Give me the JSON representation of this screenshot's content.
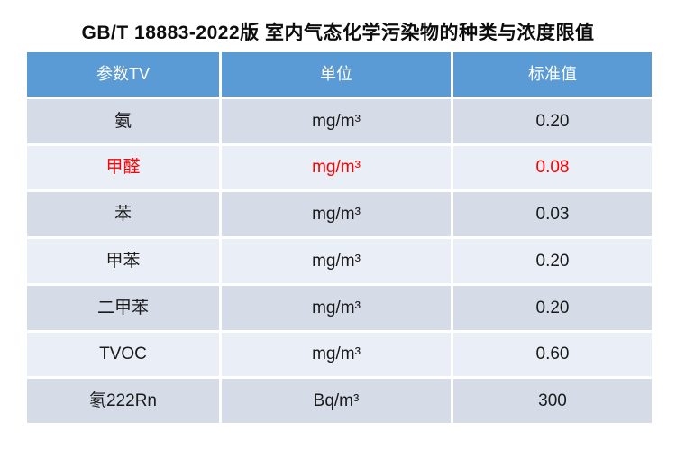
{
  "title": "GB/T 18883-2022版 室内气态化学污染物的种类与浓度限值",
  "table": {
    "headers": [
      "参数TV",
      "单位",
      "标准值"
    ],
    "rows": [
      {
        "param": "氨",
        "unit": "mg/m³",
        "value": "0.20",
        "highlight": false
      },
      {
        "param": "甲醛",
        "unit": "mg/m³",
        "value": "0.08",
        "highlight": true
      },
      {
        "param": "苯",
        "unit": "mg/m³",
        "value": "0.03",
        "highlight": false
      },
      {
        "param": "甲苯",
        "unit": "mg/m³",
        "value": "0.20",
        "highlight": false
      },
      {
        "param": "二甲苯",
        "unit": "mg/m³",
        "value": "0.20",
        "highlight": false
      },
      {
        "param": "TVOC",
        "unit": "mg/m³",
        "value": "0.60",
        "highlight": false
      },
      {
        "param": "氡222Rn",
        "unit": "Bq/m³",
        "value": "300",
        "highlight": false
      }
    ]
  },
  "colors": {
    "header_bg": "#5B9BD5",
    "header_text": "#FFFFFF",
    "row_dark": "#D5DCE8",
    "row_light": "#EAEEF6",
    "highlight_text": "#FF0000",
    "body_text": "#1A1A1A"
  },
  "chart_data": {
    "type": "table",
    "title": "GB/T 18883-2022版 室内气态化学污染物的种类与浓度限值",
    "columns": [
      "参数TV",
      "单位",
      "标准值"
    ],
    "rows": [
      [
        "氨",
        "mg/m³",
        "0.20"
      ],
      [
        "甲醛",
        "mg/m³",
        "0.08"
      ],
      [
        "苯",
        "mg/m³",
        "0.03"
      ],
      [
        "甲苯",
        "mg/m³",
        "0.20"
      ],
      [
        "二甲苯",
        "mg/m³",
        "0.20"
      ],
      [
        "TVOC",
        "mg/m³",
        "0.60"
      ],
      [
        "氡222Rn",
        "Bq/m³",
        "300"
      ]
    ],
    "annotations": [
      "甲醛 row emphasized in red"
    ]
  }
}
